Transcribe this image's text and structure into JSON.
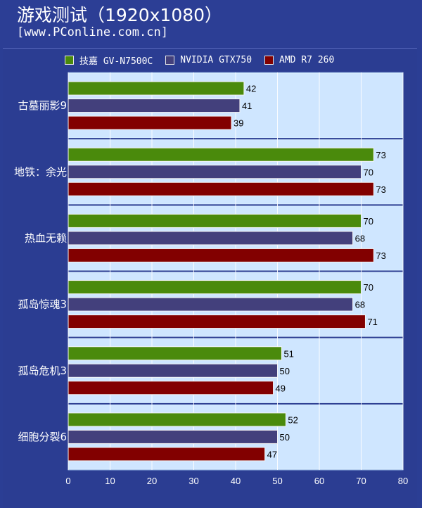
{
  "header": {
    "title": "游戏测试（1920x1080）",
    "source": "[www.PConline.com.cn]"
  },
  "chart_data": {
    "type": "bar",
    "orientation": "horizontal",
    "categories": [
      "古墓丽影9",
      "地铁：余光",
      "热血无赖",
      "孤岛惊魂3",
      "孤岛危机3",
      "细胞分裂6"
    ],
    "series": [
      {
        "name": "技嘉 GV-N7500C",
        "color": "#4a8a0c",
        "values": [
          42,
          73,
          70,
          70,
          51,
          52
        ]
      },
      {
        "name": "NVIDIA GTX750",
        "color": "#43407c",
        "values": [
          41,
          70,
          68,
          68,
          50,
          50
        ]
      },
      {
        "name": "AMD R7 260",
        "color": "#820000",
        "values": [
          39,
          73,
          73,
          71,
          49,
          47
        ]
      }
    ],
    "xlim": [
      0,
      80
    ],
    "xticks": [
      0,
      10,
      20,
      30,
      40,
      50,
      60,
      70,
      80
    ],
    "grid": true,
    "legend_position": "top",
    "plot_background": "#d6ecff",
    "group_background": "#cfe6ff"
  }
}
